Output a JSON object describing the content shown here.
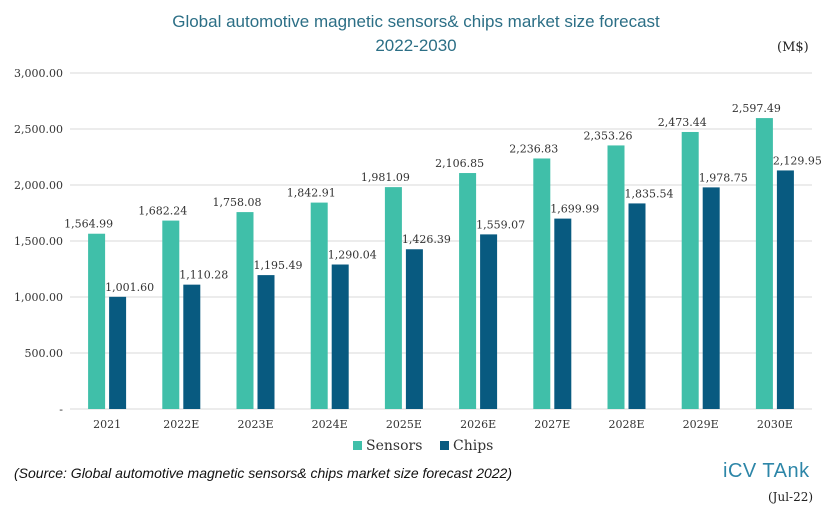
{
  "title_line1": "Global automotive magnetic sensors& chips market size forecast",
  "title_line2": "2022-2030",
  "unit_label": "(M$)",
  "source_text": "(Source: Global automotive magnetic sensors& chips market size forecast 2022)",
  "logo_text": "iCV TAnk",
  "date_text": "(Jul-22)",
  "colors": {
    "sensors": "#40bfa9",
    "chips": "#085a80",
    "grid": "#d9d9d9",
    "text": "#333333"
  },
  "chart_data": {
    "type": "bar",
    "title": "Global automotive magnetic sensors& chips market size forecast 2022-2030",
    "xlabel": "",
    "ylabel": "(M$)",
    "ylim": [
      0,
      3000
    ],
    "yticks": [
      0,
      500,
      1000,
      1500,
      2000,
      2500,
      3000
    ],
    "ytick_labels": [
      "-",
      "500.00",
      "1,000.00",
      "1,500.00",
      "2,000.00",
      "2,500.00",
      "3,000.00"
    ],
    "categories": [
      "2021",
      "2022E",
      "2023E",
      "2024E",
      "2025E",
      "2026E",
      "2027E",
      "2028E",
      "2029E",
      "2030E"
    ],
    "series": [
      {
        "name": "Sensors",
        "values": [
          1564.99,
          1682.24,
          1758.08,
          1842.91,
          1981.09,
          2106.85,
          2236.83,
          2353.26,
          2473.44,
          2597.49
        ],
        "labels": [
          "1,564.99",
          "1,682.24",
          "1,758.08",
          "1,842.91",
          "1,981.09",
          "2,106.85",
          "2,236.83",
          "2,353.26",
          "2,473.44",
          "2,597.49"
        ]
      },
      {
        "name": "Chips",
        "values": [
          1001.6,
          1110.28,
          1195.49,
          1290.04,
          1426.39,
          1559.07,
          1699.99,
          1835.54,
          1978.75,
          2129.95
        ],
        "labels": [
          "1,001.60",
          "1,110.28",
          "1,195.49",
          "1,290.04",
          "1,426.39",
          "1,559.07",
          "1,699.99",
          "1,835.54",
          "1,978.75",
          "2,129.95"
        ]
      }
    ],
    "legend": "bottom-center",
    "grid": true
  }
}
